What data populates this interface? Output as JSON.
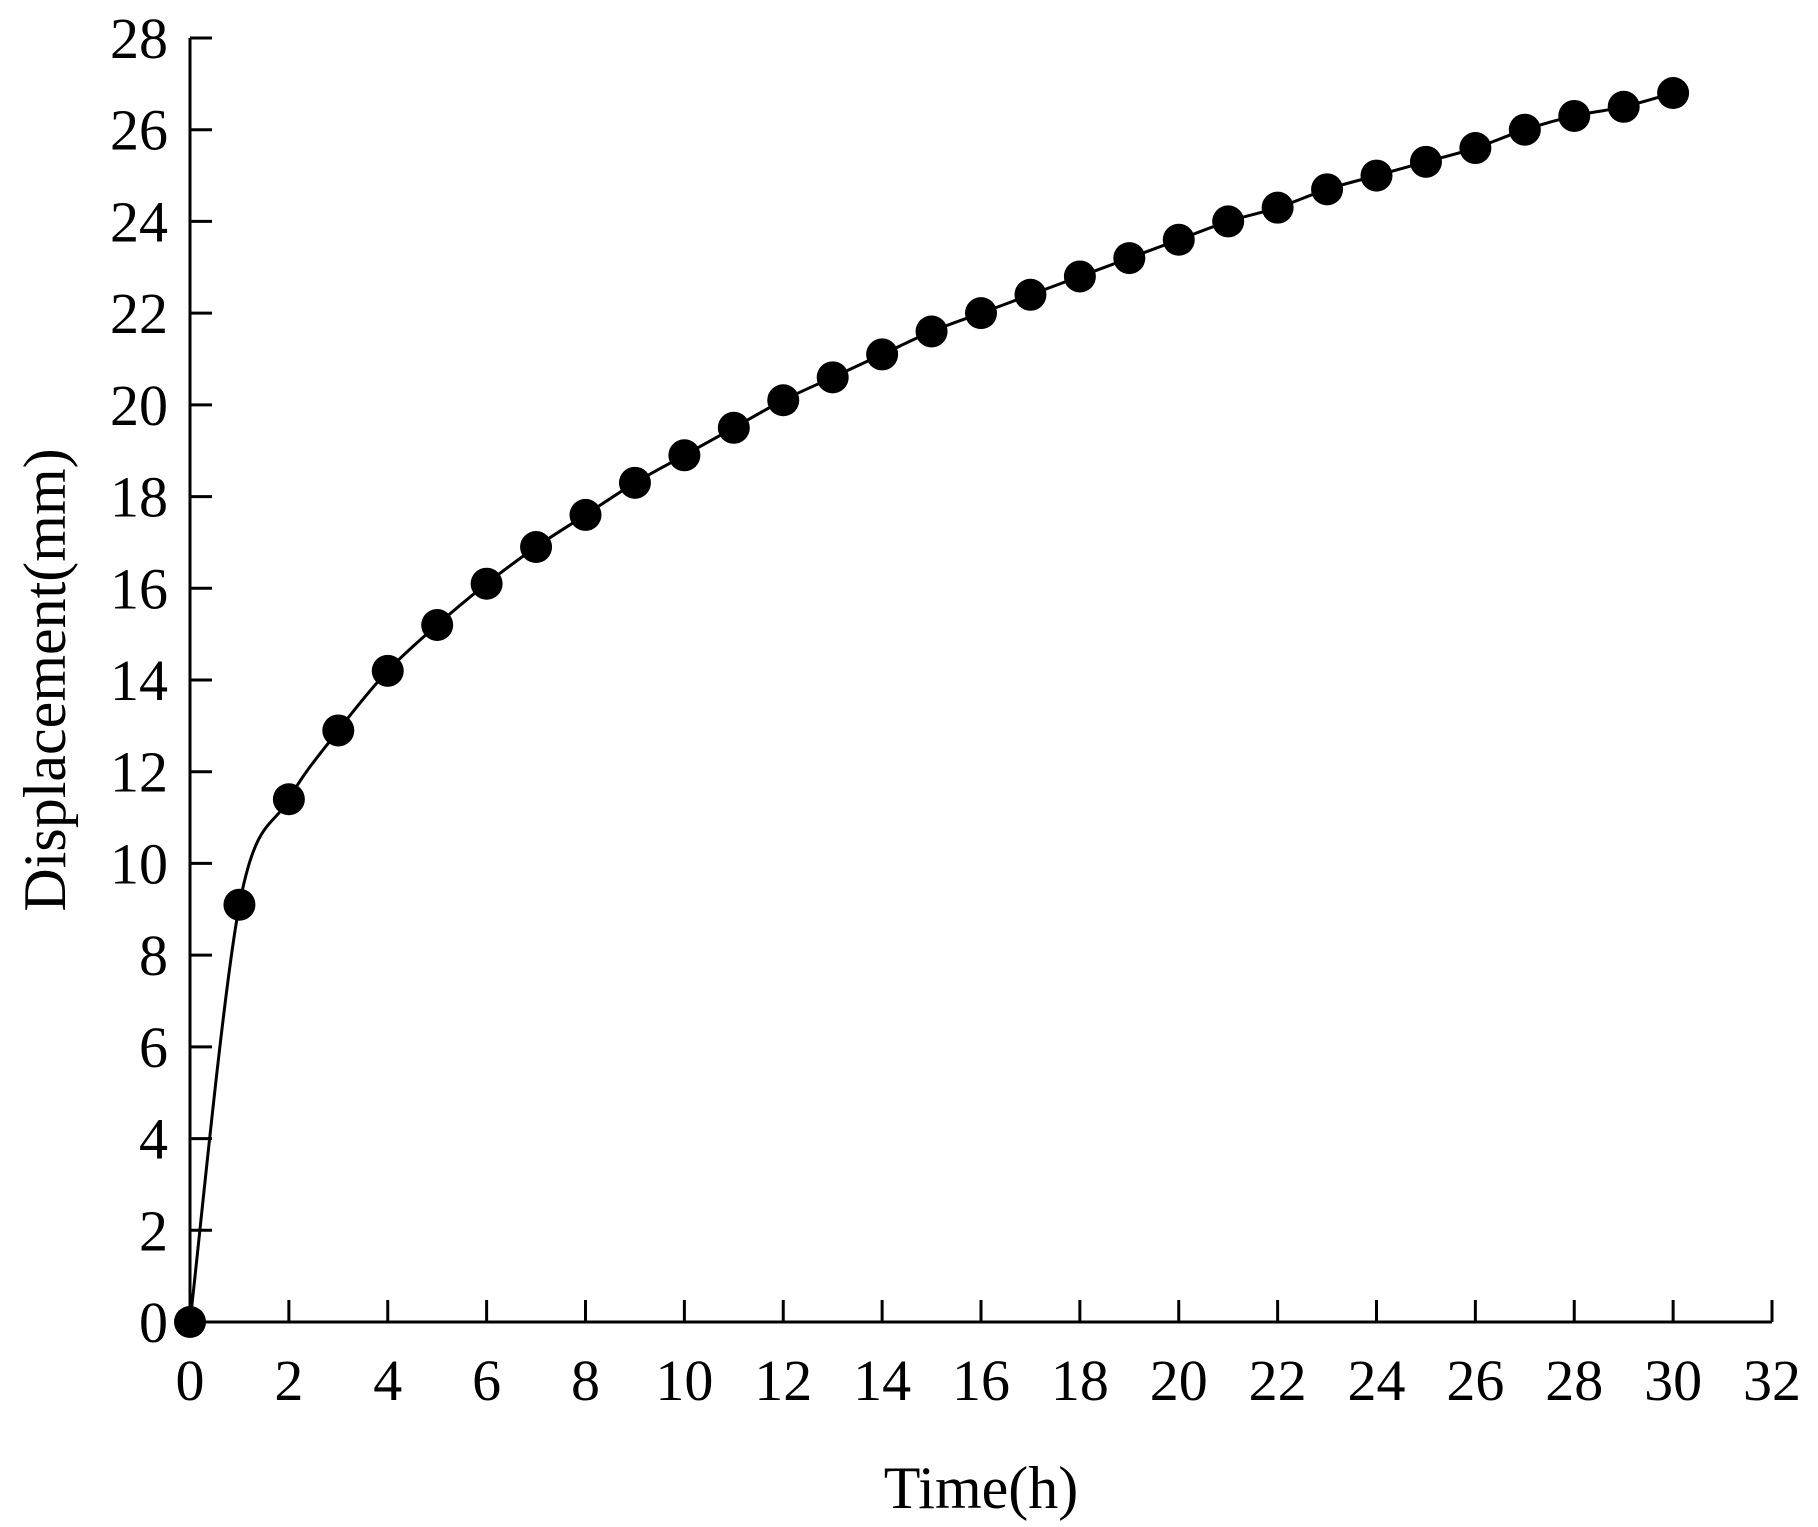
{
  "chart_data": {
    "type": "line",
    "title": "",
    "xlabel": "Time(h)",
    "ylabel": "Displacement(mm)",
    "xlim": [
      0,
      32
    ],
    "ylim": [
      0,
      28
    ],
    "xticks": [
      0,
      2,
      4,
      6,
      8,
      10,
      12,
      14,
      16,
      18,
      20,
      22,
      24,
      26,
      28,
      30,
      32
    ],
    "yticks": [
      0,
      2,
      4,
      6,
      8,
      10,
      12,
      14,
      16,
      18,
      20,
      22,
      24,
      26,
      28
    ],
    "grid": false,
    "legend": "none",
    "marker": "filled-circle",
    "color": "#000000",
    "series": [
      {
        "x": [
          0,
          1,
          2,
          3,
          4,
          5,
          6,
          7,
          8,
          9,
          10,
          11,
          12,
          13,
          14,
          15,
          16,
          17,
          18,
          19,
          20,
          21,
          22,
          23,
          24,
          25,
          26,
          27,
          28,
          29,
          30
        ],
        "y": [
          0,
          9.1,
          11.4,
          12.9,
          14.2,
          15.2,
          16.1,
          16.9,
          17.6,
          18.3,
          18.9,
          19.5,
          20.1,
          20.6,
          21.1,
          21.6,
          22.0,
          22.4,
          22.8,
          23.2,
          23.6,
          24.0,
          24.3,
          24.7,
          25.0,
          25.3,
          25.6,
          26.0,
          26.3,
          26.5,
          26.8
        ]
      }
    ]
  }
}
